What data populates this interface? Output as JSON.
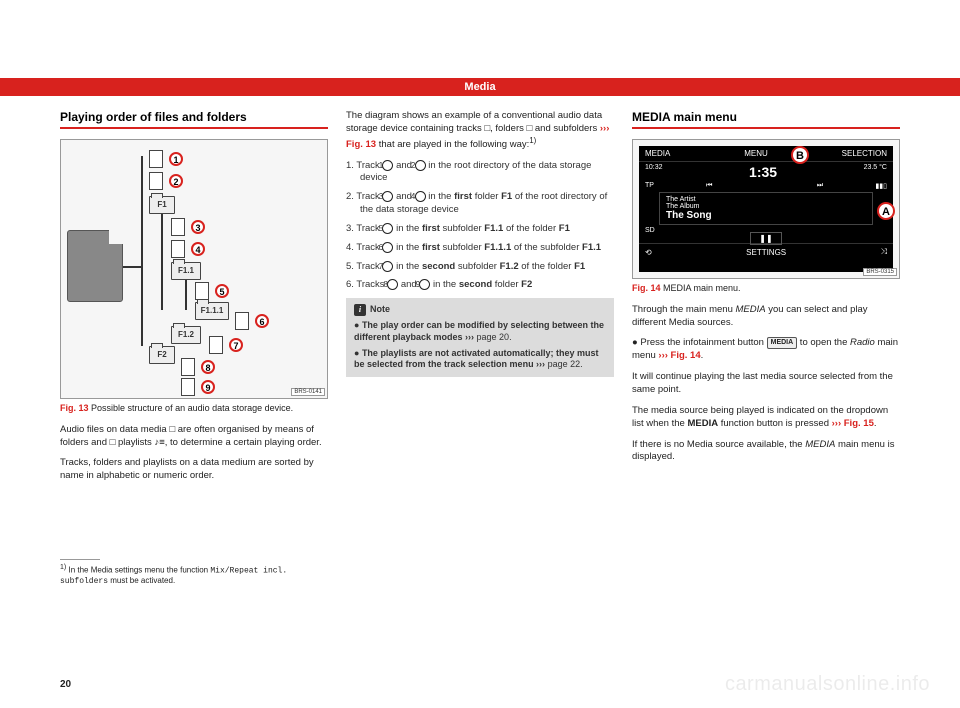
{
  "header": {
    "title": "Media"
  },
  "col1": {
    "section_title": "Playing order of files and folders",
    "fig13": {
      "code": "BRS-0141",
      "caption_prefix": "Fig. 13",
      "caption_text": "Possible structure of an audio data storage device.",
      "folders": {
        "f1": "F1",
        "f11": "F1.1",
        "f111": "F1.1.1",
        "f12": "F1.2",
        "f2": "F2"
      },
      "circles": [
        "1",
        "2",
        "3",
        "4",
        "5",
        "6",
        "7",
        "8",
        "9"
      ]
    },
    "p1": "Audio files on data media □ are often organised by means of folders and □ playlists ♪≡, to determine a certain playing order.",
    "p2": "Tracks, folders and playlists on a data medium are sorted by name in alphabetic or numeric order.",
    "footnote_label": "1)",
    "footnote_text_a": "In the Media settings menu the function ",
    "footnote_mono": "Mix/Repeat incl. subfolders",
    "footnote_text_b": " must be activated."
  },
  "col2": {
    "intro_a": "The diagram shows an example of a conventional audio data storage device containing tracks □, folders □ and subfolders ",
    "intro_link": "››› Fig. 13",
    "intro_b": " that are played in the following way:",
    "intro_sup": "1)",
    "list": [
      {
        "n": "1.",
        "text_a": "Track ",
        "c1": "1",
        "mid": " and ",
        "c2": "2",
        "text_b": " in the root directory of the data storage device"
      },
      {
        "n": "2.",
        "text_a": "Track ",
        "c1": "3",
        "mid": " and ",
        "c2": "4",
        "text_b": " in the <b>first</b> folder <b>F1</b> of the root directory of the data storage device"
      },
      {
        "n": "3.",
        "text_a": "Track ",
        "c1": "5",
        "mid": "",
        "c2": "",
        "text_b": " in the <b>first</b> subfolder <b>F1.1</b> of the folder <b>F1</b>"
      },
      {
        "n": "4.",
        "text_a": "Track ",
        "c1": "6",
        "mid": "",
        "c2": "",
        "text_b": " in the <b>first</b> subfolder <b>F1.1.1</b> of the subfolder <b>F1.1</b>"
      },
      {
        "n": "5.",
        "text_a": "Track ",
        "c1": "7",
        "mid": "",
        "c2": "",
        "text_b": " in the <b>second</b> subfolder <b>F1.2</b> of the folder <b>F1</b>"
      },
      {
        "n": "6.",
        "text_a": "Tracks ",
        "c1": "8",
        "mid": " and ",
        "c2": "9",
        "text_b": " in the <b>second</b> folder <b>F2</b>"
      }
    ],
    "note": {
      "title": "Note",
      "b1": "The play order can be modified by selecting between the different playback modes ›››",
      "b1_page": " page 20.",
      "b2": "The playlists are not activated automatically; they must be selected from the track selection menu ›››",
      "b2_page": " page 22."
    }
  },
  "col3": {
    "section_title": "MEDIA main menu",
    "fig14": {
      "code": "BRS-0315",
      "caption_prefix": "Fig. 14",
      "caption_text": "MEDIA main menu.",
      "top": {
        "l1": "MEDIA",
        "l2": "MENU",
        "l3": "SELECTION"
      },
      "row": {
        "time_l": "10:32",
        "tp": "TP",
        "playtime": "1:35",
        "temp": "23.5 °C"
      },
      "artist": "The Artist",
      "album": "The Album",
      "song": "The Song",
      "sd": "SD",
      "settings": "SETTINGS",
      "letters": {
        "a": "A",
        "b": "B"
      }
    },
    "p1_a": "Through the main menu ",
    "p1_i": "MEDIA",
    "p1_b": " you can select and play different Media sources.",
    "p2_a": "Press the infotainment button ",
    "p2_btn": "MEDIA",
    "p2_b": " to open the ",
    "p2_i": "Radio",
    "p2_c": " main menu ",
    "p2_link": "››› Fig. 14",
    "p2_d": ".",
    "p3": "It will continue playing the last media source selected from the same point.",
    "p4_a": "The media source being played is indicated on the dropdown list when the ",
    "p4_b": "MEDIA",
    "p4_c": " function button is pressed ",
    "p4_link": "››› Fig. 15",
    "p4_d": ".",
    "p5_a": "If there is no Media source available, the ",
    "p5_i": "MEDIA",
    "p5_b": " main menu is displayed."
  },
  "pagenum": "20",
  "watermark": "carmanualsonline.info"
}
